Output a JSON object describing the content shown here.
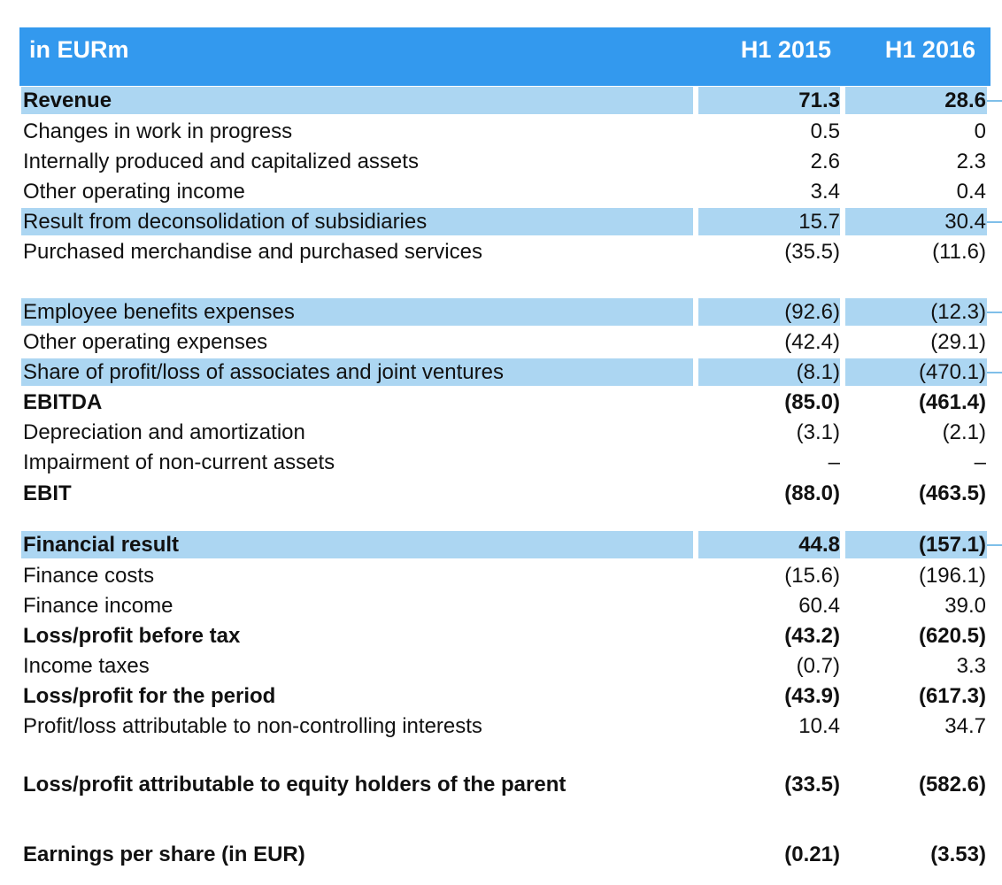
{
  "table": {
    "header": {
      "label": "in EURm",
      "col1": "H1 2015",
      "col2": "H1 2016"
    },
    "colors": {
      "header_bg": "#3399ee",
      "highlight_bg": "#acd6f2"
    },
    "rows": [
      {
        "label": "Revenue",
        "v1": "71.3",
        "v2": "28.6",
        "bold": true,
        "highlight": true
      },
      {
        "label": "Changes in work in progress",
        "v1": "0.5",
        "v2": "0",
        "bold": false,
        "highlight": false
      },
      {
        "label": "Internally produced and capitalized assets",
        "v1": "2.6",
        "v2": "2.3",
        "bold": false,
        "highlight": false
      },
      {
        "label": "Other operating income",
        "v1": "3.4",
        "v2": "0.4",
        "bold": false,
        "highlight": false
      },
      {
        "label": "Result from deconsolidation of subsidiaries",
        "v1": "15.7",
        "v2": "30.4",
        "bold": false,
        "highlight": true
      },
      {
        "label": "Purchased merchandise and purchased services",
        "v1": "(35.5)",
        "v2": "(11.6)",
        "bold": false,
        "highlight": false
      },
      {
        "label": "Employee benefits expenses",
        "v1": "(92.6)",
        "v2": "(12.3)",
        "bold": false,
        "highlight": true
      },
      {
        "label": "Other operating expenses",
        "v1": "(42.4)",
        "v2": "(29.1)",
        "bold": false,
        "highlight": false
      },
      {
        "label": "Share of profit/loss of associates and joint ventures",
        "v1": "(8.1)",
        "v2": "(470.1)",
        "bold": false,
        "highlight": true
      },
      {
        "label": "EBITDA",
        "v1": "(85.0)",
        "v2": "(461.4)",
        "bold": true,
        "highlight": false
      },
      {
        "label": "Depreciation and amortization",
        "v1": "(3.1)",
        "v2": "(2.1)",
        "bold": false,
        "highlight": false
      },
      {
        "label": "Impairment of non-current assets",
        "v1": "–",
        "v2": "–",
        "bold": false,
        "highlight": false
      },
      {
        "label": "EBIT",
        "v1": "(88.0)",
        "v2": "(463.5)",
        "bold": true,
        "highlight": false
      },
      {
        "label": "Financial result",
        "v1": "44.8",
        "v2": "(157.1)",
        "bold": true,
        "highlight": true
      },
      {
        "label": "Finance costs",
        "v1": "(15.6)",
        "v2": "(196.1)",
        "bold": false,
        "highlight": false
      },
      {
        "label": "Finance income",
        "v1": "60.4",
        "v2": "39.0",
        "bold": false,
        "highlight": false
      },
      {
        "label": "Loss/profit before tax",
        "v1": "(43.2)",
        "v2": "(620.5)",
        "bold": true,
        "highlight": false
      },
      {
        "label": "Income taxes",
        "v1": "(0.7)",
        "v2": "3.3",
        "bold": false,
        "highlight": false
      },
      {
        "label": "Loss/profit for the period",
        "v1": "(43.9)",
        "v2": "(617.3)",
        "bold": true,
        "highlight": false
      },
      {
        "label": "Profit/loss attributable to non-controlling interests",
        "v1": "10.4",
        "v2": "34.7",
        "bold": false,
        "highlight": false
      },
      {
        "label": "Loss/profit attributable to equity holders of the parent",
        "v1": "(33.5)",
        "v2": "(582.6)",
        "bold": true,
        "highlight": false
      },
      {
        "label": "Earnings per share (in EUR)",
        "v1": "(0.21)",
        "v2": "(3.53)",
        "bold": true,
        "highlight": false
      }
    ]
  }
}
